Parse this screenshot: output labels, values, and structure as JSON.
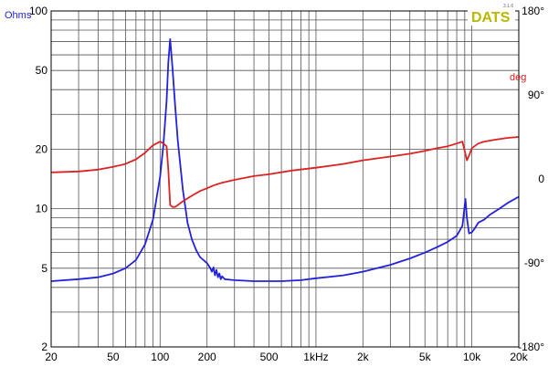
{
  "chart_data": {
    "type": "line",
    "title": "",
    "brand": "DATS",
    "version": "3.1.6",
    "x_scale": "log",
    "xlim": [
      20,
      20000
    ],
    "x_ticks": [
      {
        "value": 20,
        "label": "20"
      },
      {
        "value": 50,
        "label": "50"
      },
      {
        "value": 100,
        "label": "100"
      },
      {
        "value": 200,
        "label": "200"
      },
      {
        "value": 500,
        "label": "500"
      },
      {
        "value": 1000,
        "label": "1kHz"
      },
      {
        "value": 2000,
        "label": "2k"
      },
      {
        "value": 5000,
        "label": "5k"
      },
      {
        "value": 10000,
        "label": "10k"
      },
      {
        "value": 20000,
        "label": "20k"
      }
    ],
    "y_left": {
      "label": "Ohms",
      "scale": "log",
      "lim": [
        2,
        100
      ],
      "ticks": [
        {
          "value": 100,
          "label": "100"
        },
        {
          "value": 50,
          "label": "50"
        },
        {
          "value": 20,
          "label": "20"
        },
        {
          "value": 10,
          "label": "10"
        },
        {
          "value": 5,
          "label": "5"
        },
        {
          "value": 2,
          "label": "2"
        }
      ]
    },
    "y_right": {
      "label": "deg",
      "lim": [
        -180,
        180
      ],
      "ticks": [
        {
          "value": 180,
          "label": "180°"
        },
        {
          "value": 90,
          "label": "90°"
        },
        {
          "value": 0,
          "label": "0"
        },
        {
          "value": -90,
          "label": "-90°"
        },
        {
          "value": -180,
          "label": "-180°"
        }
      ]
    },
    "grid": true,
    "series": [
      {
        "axis": "left",
        "color": "#2222dd",
        "x": [
          20,
          30,
          40,
          50,
          60,
          70,
          80,
          90,
          100,
          105,
          110,
          113,
          116,
          120,
          125,
          130,
          140,
          150,
          160,
          170,
          180,
          200,
          210,
          215,
          220,
          225,
          230,
          235,
          240,
          245,
          250,
          260,
          300,
          400,
          500,
          600,
          800,
          1000,
          1500,
          2000,
          3000,
          4000,
          5000,
          6000,
          7000,
          8000,
          8700,
          9100,
          9300,
          9600,
          10000,
          10500,
          11000,
          12000,
          13000,
          15000,
          17000,
          20000
        ],
        "y": [
          4.3,
          4.4,
          4.5,
          4.7,
          5.0,
          5.5,
          6.6,
          8.8,
          14.5,
          21,
          35,
          55,
          72,
          52,
          33,
          22,
          12.5,
          8.5,
          7.0,
          6.2,
          5.7,
          5.3,
          5.0,
          4.8,
          5.05,
          4.6,
          4.9,
          4.5,
          4.7,
          4.4,
          4.55,
          4.4,
          4.35,
          4.3,
          4.3,
          4.3,
          4.35,
          4.45,
          4.6,
          4.8,
          5.2,
          5.6,
          6.0,
          6.4,
          6.8,
          7.3,
          8.2,
          11.2,
          9.0,
          7.5,
          7.6,
          8.0,
          8.5,
          8.8,
          9.3,
          10.0,
          10.7,
          11.5
        ]
      },
      {
        "axis": "right",
        "color": "#dd2222",
        "x": [
          20,
          30,
          40,
          50,
          60,
          70,
          80,
          90,
          100,
          105,
          110,
          113,
          116,
          120,
          125,
          130,
          140,
          160,
          180,
          200,
          220,
          250,
          300,
          400,
          500,
          700,
          1000,
          1500,
          2000,
          3000,
          4000,
          5000,
          6000,
          7000,
          8000,
          8700,
          9000,
          9300,
          9600,
          10000,
          11000,
          12000,
          14000,
          17000,
          20000
        ],
        "y": [
          7,
          8,
          10,
          13,
          16,
          21,
          28,
          36,
          40,
          38,
          35,
          10,
          -28,
          -30,
          -30,
          -28,
          -24,
          -18,
          -13,
          -10,
          -7,
          -4,
          -1,
          3,
          5,
          9,
          12,
          16,
          20,
          24,
          27,
          30,
          33,
          35,
          38,
          40,
          30,
          20,
          25,
          33,
          38,
          40,
          42,
          44,
          45
        ]
      }
    ]
  }
}
